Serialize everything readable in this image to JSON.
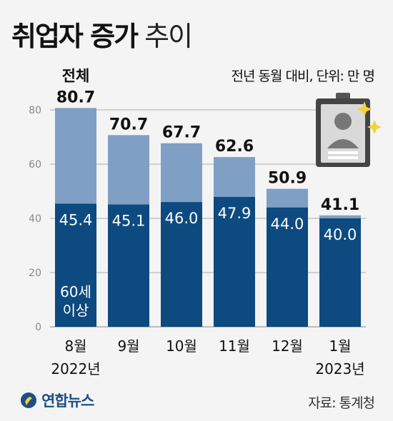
{
  "title": {
    "bold": "취업자 증가",
    "light": "추이"
  },
  "unit_note": "전년 동월 대비, 단위: 만 명",
  "source": "자료: 통계청",
  "logo_text": "연합뉴스",
  "colors": {
    "light_bar": "#809fc4",
    "dark_bar": "#0d4a80",
    "background": "#f4f4f4",
    "gridline": "#aaaaaa"
  },
  "icons": [
    "id-card-icon",
    "sparkle-icon",
    "yonhap-logo-icon"
  ],
  "chart_data": {
    "type": "bar",
    "stacked": true,
    "categories": [
      "8월",
      "9월",
      "10월",
      "11월",
      "12월",
      "1월"
    ],
    "category_sublabels": [
      "2022년",
      "",
      "",
      "",
      "",
      "2023년"
    ],
    "total_label_prefix": "전체",
    "totals": [
      80.7,
      70.7,
      67.7,
      62.6,
      50.9,
      41.1
    ],
    "series": [
      {
        "name": "60세 이상",
        "values": [
          45.4,
          45.1,
          46.0,
          47.9,
          44.0,
          40.0
        ],
        "labels": [
          "45.4",
          "45.1",
          "46.0",
          "47.9",
          "44.0",
          "40.0"
        ]
      },
      {
        "values": [
          35.3,
          25.6,
          21.7,
          14.7,
          6.9,
          1.1
        ]
      }
    ],
    "total_labels": [
      "80.7",
      "70.7",
      "67.7",
      "62.6",
      "50.9",
      "41.1"
    ],
    "series_label_lines": [
      "60세",
      "이상"
    ],
    "yticks": [
      "0",
      "20",
      "40",
      "60",
      "80"
    ],
    "ylim": [
      0,
      80
    ],
    "grid": true
  }
}
